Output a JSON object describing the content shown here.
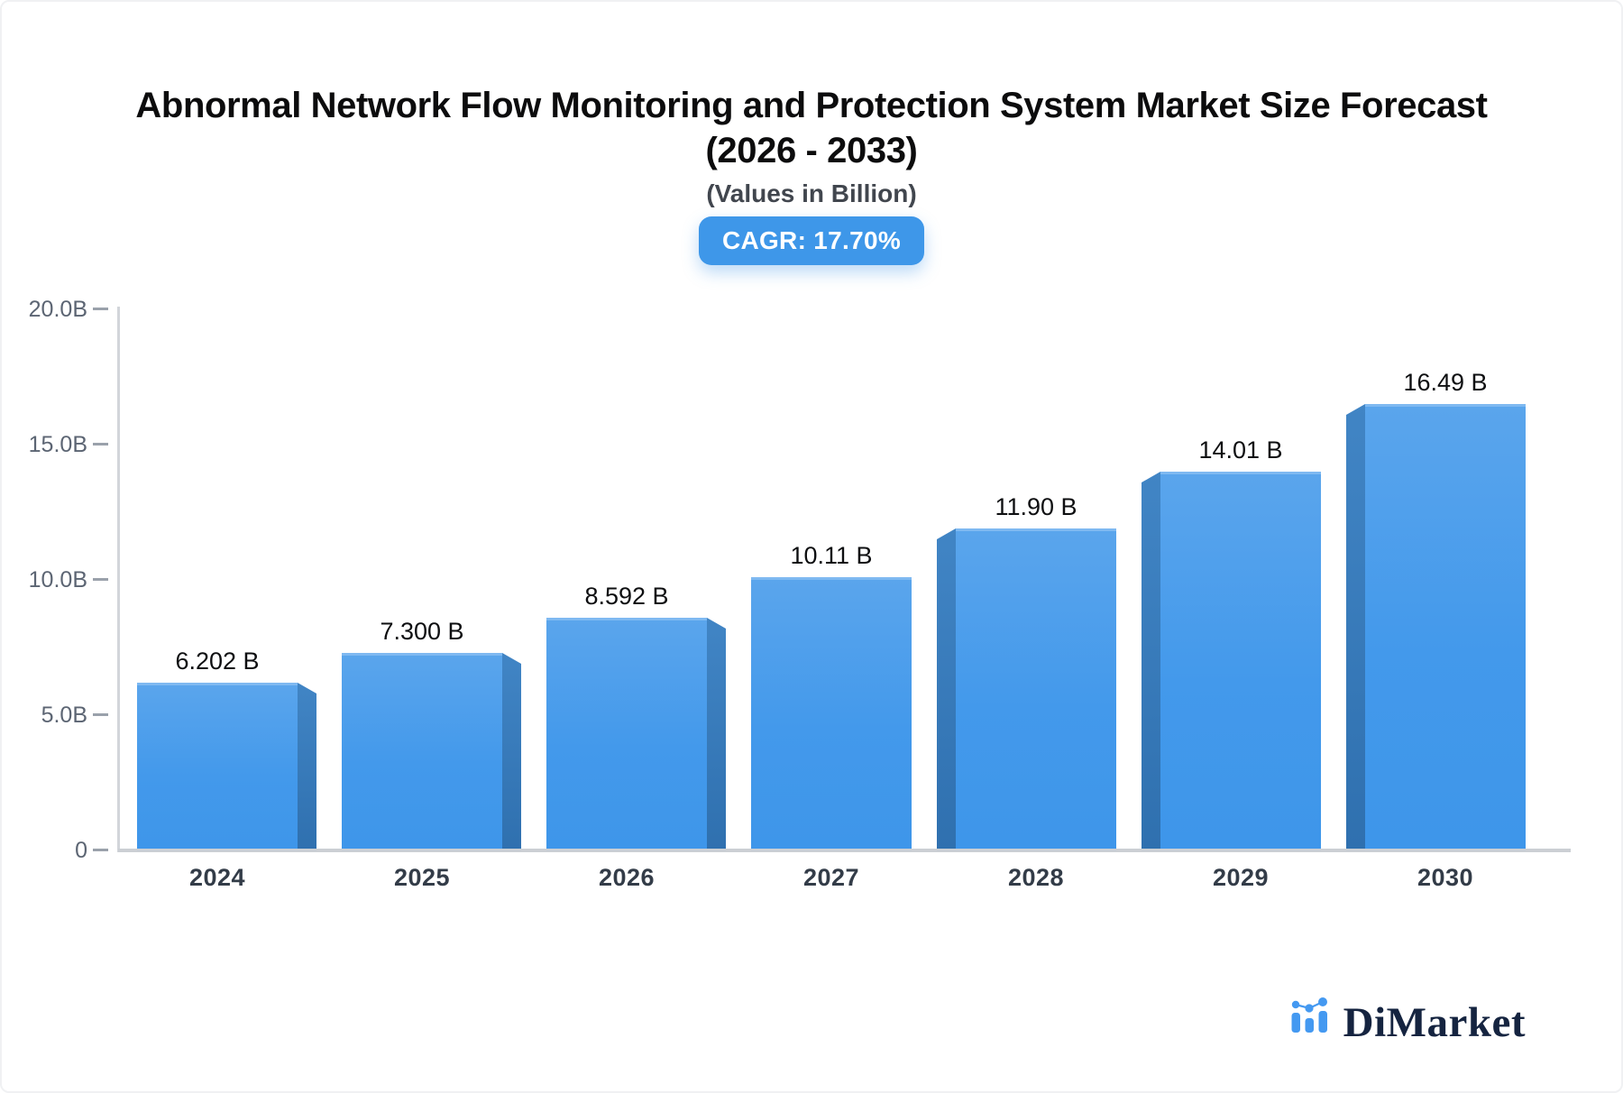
{
  "header": {
    "title_line1": "Abnormal Network Flow Monitoring and Protection System Market Size Forecast",
    "title_line2": "(2026 - 2033)",
    "subtitle": "(Values in Billion)",
    "cagr_badge": "CAGR: 17.70%"
  },
  "chart_data": {
    "type": "bar",
    "title": "Abnormal Network Flow Monitoring and Protection System Market Size Forecast (2026 - 2033)",
    "subtitle": "(Values in Billion)",
    "cagr_percent": 17.7,
    "categories": [
      "2024",
      "2025",
      "2026",
      "2027",
      "2028",
      "2029",
      "2030"
    ],
    "values": [
      6.202,
      7.3,
      8.592,
      10.11,
      11.9,
      14.01,
      16.49
    ],
    "bar_labels": [
      "6.202 B",
      "7.300 B",
      "8.592 B",
      "10.11 B",
      "11.90 B",
      "14.01 B",
      "16.49 B"
    ],
    "unit": "Billion",
    "xlabel": "",
    "ylabel": "",
    "ylim": [
      0,
      20
    ],
    "yticks": [
      {
        "label": "20.0B",
        "value": 20
      },
      {
        "label": "15.0B",
        "value": 15
      },
      {
        "label": "10.0B",
        "value": 10
      },
      {
        "label": "5.0B",
        "value": 5
      },
      {
        "label": "0",
        "value": 0
      }
    ],
    "grid": false,
    "legend": "none",
    "bar_style": "3d-perspective"
  },
  "branding": {
    "logo_text": "DiMarket",
    "logo_icon": "mini-bar-line-chart-icon"
  },
  "colors": {
    "bar_face_top": "#5aa5ec",
    "bar_face_bottom": "#3e96ea",
    "bar_side": "#2f70af",
    "badge_bg": "#3e97e9",
    "badge_text": "#ffffff",
    "axis_line": "#d2d5da",
    "tick_text": "#5c6573",
    "x_label_text": "#333c48",
    "value_label_text": "#0e0f11",
    "title_text": "#0c0c0d",
    "subtitle_text": "#41464e",
    "logo_navy": "#152440",
    "logo_blue": "#4499f1"
  }
}
